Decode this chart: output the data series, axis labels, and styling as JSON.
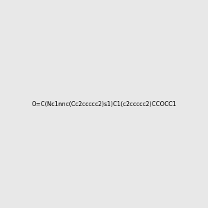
{
  "smiles": "O=C(Nc1nnc(Cc2ccccc2)s1)C1(c2ccccc2)CCOCC1",
  "image_size": 300,
  "background_color": "#e8e8e8",
  "atom_colors": {
    "N": "#0000ff",
    "O": "#ff0000",
    "S": "#cccc00"
  },
  "title": ""
}
